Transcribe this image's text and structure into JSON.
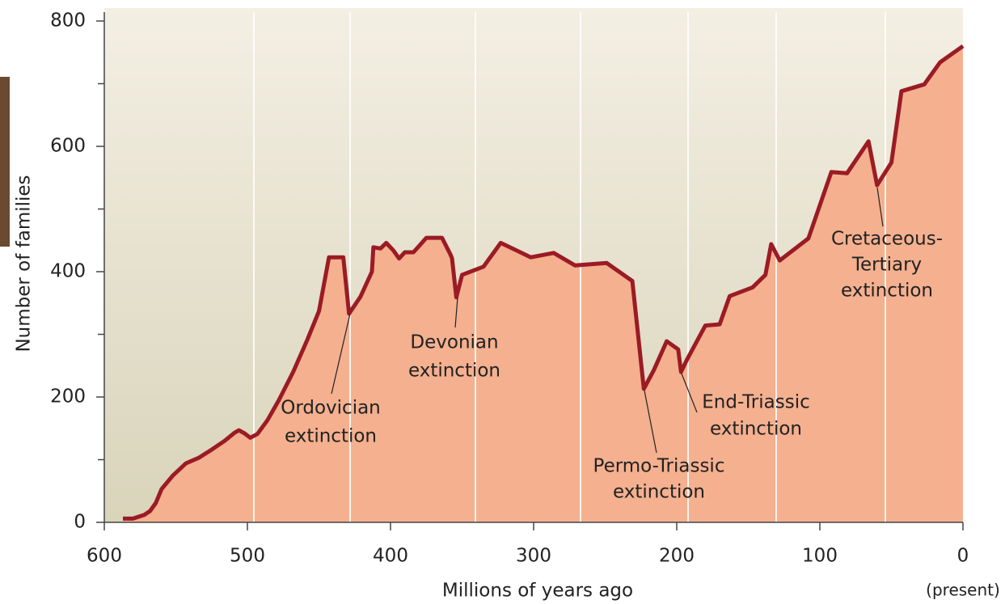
{
  "chart_data": {
    "type": "area",
    "xlabel": "Millions of years ago",
    "xlabel_note": "(present)",
    "ylabel": "Number of families",
    "x": [
      587,
      580,
      572,
      568,
      564,
      560,
      552,
      543,
      534,
      525,
      516,
      509,
      506,
      502,
      498,
      493,
      486,
      478,
      468,
      458,
      450,
      443,
      433,
      429,
      421,
      413,
      412,
      407,
      403,
      398,
      394,
      390,
      384,
      380,
      375,
      364,
      358,
      357,
      354,
      350,
      335,
      323,
      302,
      286,
      271,
      249,
      231,
      223,
      216,
      207,
      199,
      197,
      193,
      180,
      170,
      163,
      147,
      138,
      134,
      128,
      108,
      92,
      81,
      66,
      60,
      50,
      43,
      27,
      16,
      0
    ],
    "series": [
      {
        "name": "Number of families",
        "color": "#9b1b24",
        "fill": "#f4b08f",
        "values": [
          6,
          6,
          12,
          18,
          31,
          53,
          75,
          94,
          103,
          116,
          130,
          143,
          147,
          142,
          135,
          141,
          163,
          195,
          240,
          292,
          337,
          423,
          423,
          333,
          360,
          400,
          439,
          437,
          446,
          434,
          421,
          431,
          431,
          441,
          454,
          454,
          427,
          421,
          359,
          395,
          408,
          446,
          423,
          430,
          410,
          414,
          385,
          213,
          243,
          289,
          276,
          240,
          259,
          314,
          316,
          361,
          375,
          395,
          444,
          418,
          453,
          559,
          557,
          608,
          538,
          574,
          688,
          699,
          734,
          760
        ]
      }
    ],
    "xlim": [
      600,
      0
    ],
    "xticks": [
      600,
      500,
      400,
      300,
      200,
      100,
      0
    ],
    "ylim": [
      0,
      800
    ],
    "yticks": [
      0,
      200,
      400,
      600,
      800
    ],
    "yminorticks": [
      100,
      300,
      500,
      700
    ],
    "annotations": [
      {
        "lines": [
          "Ordovician",
          "extinction"
        ]
      },
      {
        "lines": [
          "Devonian",
          "extinction"
        ]
      },
      {
        "lines": [
          "Permo-Triassic",
          "extinction"
        ]
      },
      {
        "lines": [
          "End-Triassic",
          "extinction"
        ]
      },
      {
        "lines": [
          "Cretaceous-",
          "Tertiary",
          "extinction"
        ]
      }
    ]
  }
}
